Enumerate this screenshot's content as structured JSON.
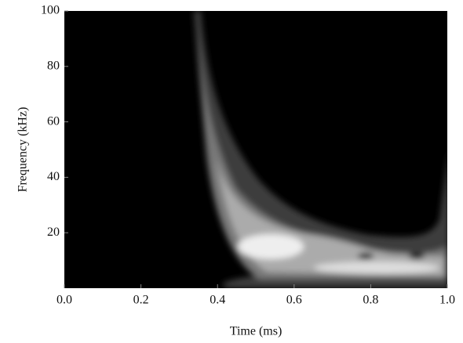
{
  "chart_data": {
    "type": "contour",
    "xlabel": "Time (ms)",
    "ylabel": "Frequency (kHz)",
    "xlim": [
      0,
      1
    ],
    "ylim": [
      0,
      100
    ],
    "xticks": [
      {
        "value": 0,
        "label": "0.0"
      },
      {
        "value": 0.2,
        "label": "0.2"
      },
      {
        "value": 0.4,
        "label": "0.4"
      },
      {
        "value": 0.6,
        "label": "0.6"
      },
      {
        "value": 0.8,
        "label": "0.8"
      },
      {
        "value": 1,
        "label": "1.0"
      }
    ],
    "yticks": [
      20,
      40,
      60,
      80,
      100
    ]
  }
}
